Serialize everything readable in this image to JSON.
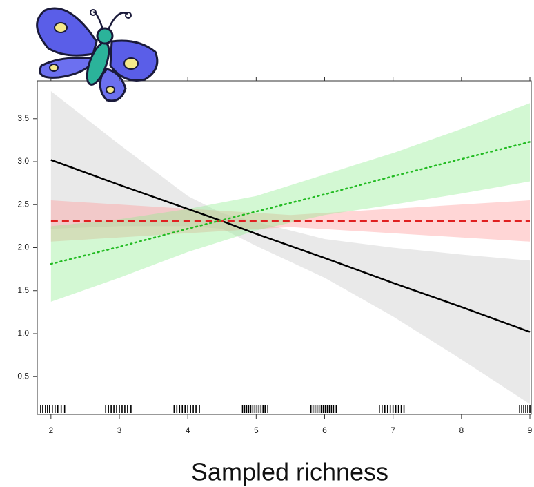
{
  "chart_data": {
    "type": "line",
    "x_label": "Sampled richness",
    "xlim": [
      1.8,
      9.02
    ],
    "ylim": [
      0.06,
      3.94
    ],
    "xticks": [
      2,
      3,
      4,
      5,
      6,
      7,
      8,
      9
    ],
    "yticks": [
      0.5,
      1.0,
      1.5,
      2.0,
      2.5,
      3.0,
      3.5
    ],
    "ytick_labels": [
      "0.5",
      "1.0",
      "1.5",
      "2.0",
      "2.5",
      "3.0",
      "3.5"
    ],
    "series": [
      {
        "color": "#000000",
        "band_color": "#c8c8c8",
        "dash": "solid",
        "x": [
          2,
          3,
          4,
          4.5,
          5,
          6,
          7,
          8,
          9
        ],
        "values": [
          3.02,
          2.73,
          2.45,
          2.31,
          2.16,
          1.88,
          1.59,
          1.31,
          1.02
        ],
        "upper": [
          3.82,
          3.2,
          2.6,
          2.4,
          2.3,
          2.1,
          2.0,
          1.92,
          1.85
        ],
        "lower": [
          2.22,
          2.25,
          2.25,
          2.22,
          2.02,
          1.65,
          1.2,
          0.7,
          0.18
        ]
      },
      {
        "color": "#e02020",
        "band_color": "#ff9999",
        "dash": "dashed",
        "x": [
          2,
          5.5,
          9
        ],
        "values": [
          2.31,
          2.31,
          2.31
        ],
        "upper": [
          2.55,
          2.38,
          2.55
        ],
        "lower": [
          2.07,
          2.24,
          2.07
        ]
      },
      {
        "color": "#22bb22",
        "band_color": "#90ee90",
        "dash": "dotted",
        "x": [
          2,
          3,
          4,
          5,
          6,
          7,
          8,
          9
        ],
        "values": [
          1.81,
          2.01,
          2.22,
          2.42,
          2.62,
          2.83,
          3.03,
          3.23
        ],
        "upper": [
          2.25,
          2.33,
          2.45,
          2.6,
          2.85,
          3.1,
          3.38,
          3.68
        ],
        "lower": [
          1.37,
          1.65,
          1.95,
          2.2,
          2.38,
          2.5,
          2.63,
          2.77
        ]
      }
    ],
    "rug": [
      1.85,
      1.88,
      1.92,
      1.95,
      1.98,
      2.02,
      2.06,
      2.1,
      2.15,
      2.2,
      2.8,
      2.84,
      2.88,
      2.92,
      2.96,
      3.0,
      3.04,
      3.08,
      3.12,
      3.17,
      3.8,
      3.84,
      3.88,
      3.92,
      3.96,
      4.0,
      4.04,
      4.08,
      4.12,
      4.17,
      4.8,
      4.83,
      4.86,
      4.89,
      4.92,
      4.95,
      4.98,
      5.01,
      5.04,
      5.07,
      5.1,
      5.13,
      5.17,
      5.8,
      5.83,
      5.86,
      5.89,
      5.92,
      5.95,
      5.98,
      6.01,
      6.04,
      6.07,
      6.1,
      6.13,
      6.17,
      6.8,
      6.84,
      6.88,
      6.92,
      6.96,
      7.0,
      7.04,
      7.08,
      7.12,
      7.16,
      8.85,
      8.88,
      8.91,
      8.94,
      8.97,
      9.0
    ]
  }
}
